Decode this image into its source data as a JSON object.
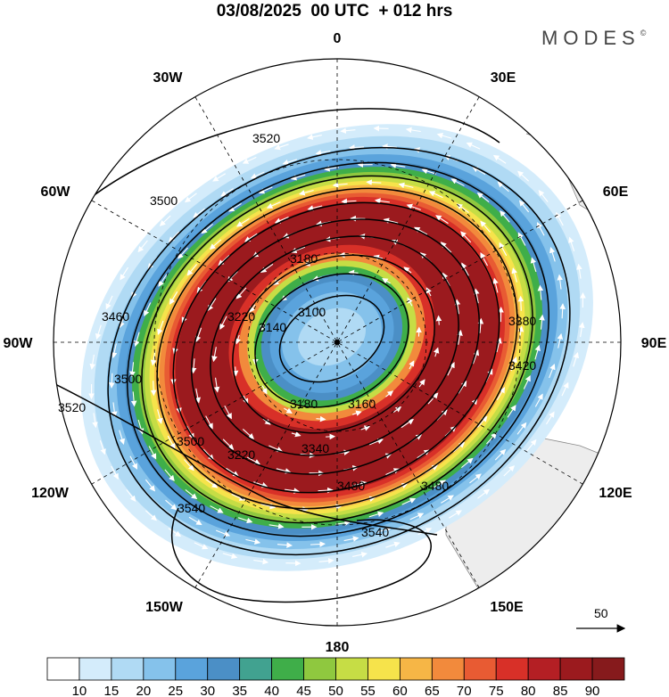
{
  "header": {
    "title": "03/08/2025  00 UTC  + 012 hrs",
    "brand": "MODES",
    "brand_mark": "©"
  },
  "map": {
    "projection": "south-polar-stereographic",
    "field": "wind speed (shaded) with geopotential height contours and wind vectors",
    "longitude_labels": [
      {
        "text": "0",
        "name": "lon-label-0"
      },
      {
        "text": "30E",
        "name": "lon-label-30e"
      },
      {
        "text": "60E",
        "name": "lon-label-60e"
      },
      {
        "text": "90E",
        "name": "lon-label-90e"
      },
      {
        "text": "120E",
        "name": "lon-label-120e"
      },
      {
        "text": "150E",
        "name": "lon-label-150e"
      },
      {
        "text": "180",
        "name": "lon-label-180"
      },
      {
        "text": "150W",
        "name": "lon-label-150w"
      },
      {
        "text": "120W",
        "name": "lon-label-120w"
      },
      {
        "text": "90W",
        "name": "lon-label-90w"
      },
      {
        "text": "60W",
        "name": "lon-label-60w"
      },
      {
        "text": "30W",
        "name": "lon-label-30w"
      }
    ],
    "contour_labels": [
      "3520",
      "3500",
      "3100",
      "3160",
      "3140",
      "3180",
      "3220",
      "3480",
      "3540",
      "3540",
      "3520",
      "3500",
      "3460",
      "3500",
      "3340",
      "3480",
      "3420",
      "3220",
      "3180",
      "3380"
    ],
    "reference_vector": "50"
  },
  "colorbar": {
    "labels": [
      "10",
      "15",
      "20",
      "25",
      "30",
      "35",
      "40",
      "45",
      "50",
      "55",
      "60",
      "65",
      "70",
      "75",
      "80",
      "85",
      "90"
    ],
    "colors": [
      "#ffffff",
      "#d4ecfb",
      "#b0daf4",
      "#85c2eb",
      "#5aa3dc",
      "#4b8fc6",
      "#41a290",
      "#3fae49",
      "#8fc83f",
      "#c6dd45",
      "#f6e34b",
      "#f6b646",
      "#f28a3c",
      "#e85b33",
      "#d83028",
      "#b41f24",
      "#9b1a1e",
      "#861a1c"
    ]
  }
}
